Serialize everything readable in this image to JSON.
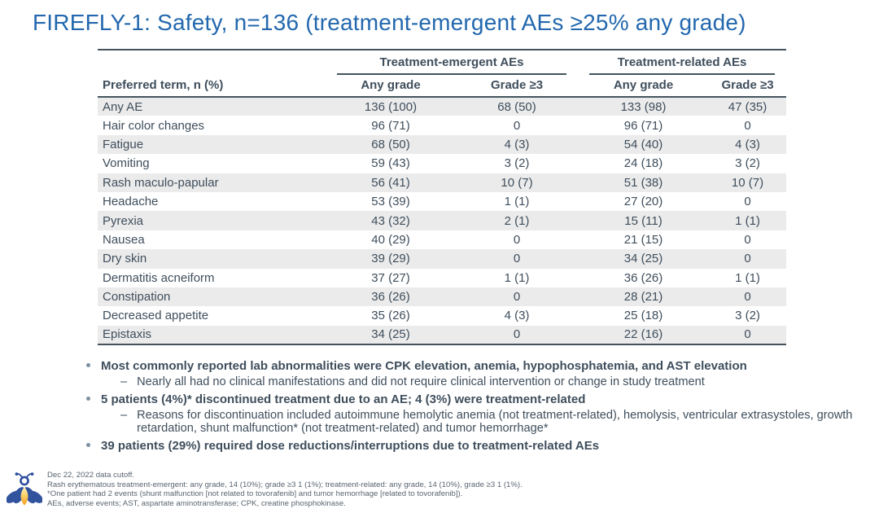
{
  "title": "FIREFLY-1: Safety, n=136 (treatment-emergent AEs ≥25% any grade)",
  "table": {
    "col_header": "Preferred term, n (%)",
    "groups": [
      {
        "label": "Treatment-emergent AEs"
      },
      {
        "label": "Treatment-related AEs"
      }
    ],
    "subheaders": [
      "Any grade",
      "Grade ≥3",
      "Any grade",
      "Grade ≥3"
    ],
    "rows": [
      {
        "term": "Any AE",
        "values": [
          "136 (100)",
          "68 (50)",
          "133 (98)",
          "47 (35)"
        ]
      },
      {
        "term": "Hair color changes",
        "values": [
          "96 (71)",
          "0",
          "96 (71)",
          "0"
        ]
      },
      {
        "term": "Fatigue",
        "values": [
          "68 (50)",
          "4 (3)",
          "54 (40)",
          "4 (3)"
        ]
      },
      {
        "term": "Vomiting",
        "values": [
          "59 (43)",
          "3 (2)",
          "24 (18)",
          "3 (2)"
        ]
      },
      {
        "term": "Rash maculo-papular",
        "values": [
          "56 (41)",
          "10 (7)",
          "51 (38)",
          "10 (7)"
        ]
      },
      {
        "term": "Headache",
        "values": [
          "53 (39)",
          "1 (1)",
          "27 (20)",
          "0"
        ]
      },
      {
        "term": "Pyrexia",
        "values": [
          "43 (32)",
          "2 (1)",
          "15 (11)",
          "1 (1)"
        ]
      },
      {
        "term": "Nausea",
        "values": [
          "40 (29)",
          "0",
          "21 (15)",
          "0"
        ]
      },
      {
        "term": "Dry skin",
        "values": [
          "39 (29)",
          "0",
          "34 (25)",
          "0"
        ]
      },
      {
        "term": "Dermatitis acneiform",
        "values": [
          "37 (27)",
          "1 (1)",
          "36 (26)",
          "1 (1)"
        ]
      },
      {
        "term": "Constipation",
        "values": [
          "36 (26)",
          "0",
          "28 (21)",
          "0"
        ]
      },
      {
        "term": "Decreased appetite",
        "values": [
          "35 (26)",
          "4 (3)",
          "25 (18)",
          "3 (2)"
        ]
      },
      {
        "term": "Epistaxis",
        "values": [
          "34 (25)",
          "0",
          "22 (16)",
          "0"
        ]
      }
    ]
  },
  "bullets": [
    {
      "text": "Most commonly reported lab abnormalities were CPK elevation, anemia, hypophosphatemia, and AST elevation",
      "sub": [
        "Nearly all had no clinical manifestations and did not require clinical intervention or change in study treatment"
      ]
    },
    {
      "text": "5 patients (4%)* discontinued treatment due to an AE; 4 (3%) were treatment-related",
      "sub": [
        "Reasons for discontinuation included autoimmune hemolytic anemia (not treatment-related), hemolysis, ventricular extrasystoles, growth retardation, shunt malfunction* (not treatment-related) and tumor hemorrhage*"
      ]
    },
    {
      "text": "39 patients (29%) required dose reductions/interruptions due to treatment-related AEs",
      "sub": []
    }
  ],
  "footnotes": [
    "Dec 22, 2022 data cutoff.",
    "Rash erythematous treatment-emergent: any grade, 14 (10%); grade ≥3 1 (1%); treatment-related: any grade, 14 (10%), grade ≥3 1 (1%).",
    "*One patient had 2 events (shunt malfunction [not related to tovorafenib] and tumor hemorrhage [related to tovorafenib]).",
    "AEs, adverse events; AST, aspartate aminotransferase; CPK, creatine phosphokinase."
  ],
  "logo": {
    "name": "firefly-logo"
  },
  "colors": {
    "title": "#2368ae",
    "text": "#3f4e5c",
    "stripe": "#ebebeb",
    "line": "#44535e",
    "dot": "#7d90a0",
    "foot": "#5a6570",
    "wing": "#31539e",
    "glow1": "#fcd36b",
    "glow2": "#f59d1e"
  }
}
